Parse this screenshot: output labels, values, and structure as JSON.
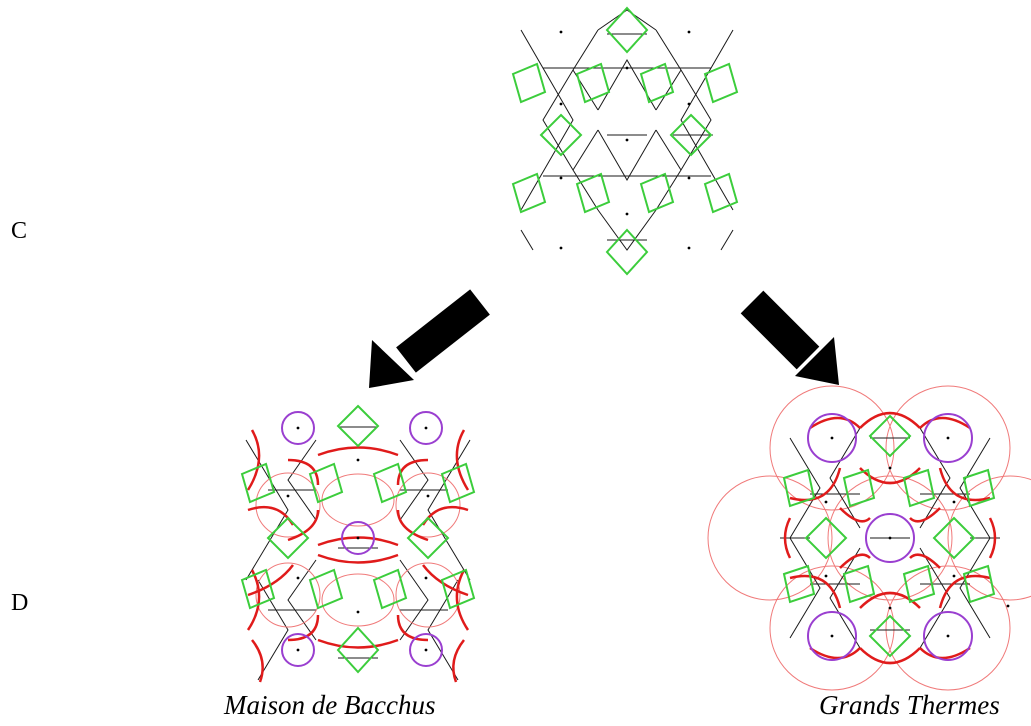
{
  "labels": {
    "row_c": "C",
    "row_d": "D"
  },
  "captions": {
    "left": "Maison de Bacchus",
    "right": "Grands Thermes"
  },
  "colors": {
    "line": "#1a1a1a",
    "square": "#3ccd3c",
    "circle": "#9a3fd0",
    "arc_bold": "#e01b1b",
    "arc_thin": "#f07a7a",
    "arrow": "#000000"
  }
}
